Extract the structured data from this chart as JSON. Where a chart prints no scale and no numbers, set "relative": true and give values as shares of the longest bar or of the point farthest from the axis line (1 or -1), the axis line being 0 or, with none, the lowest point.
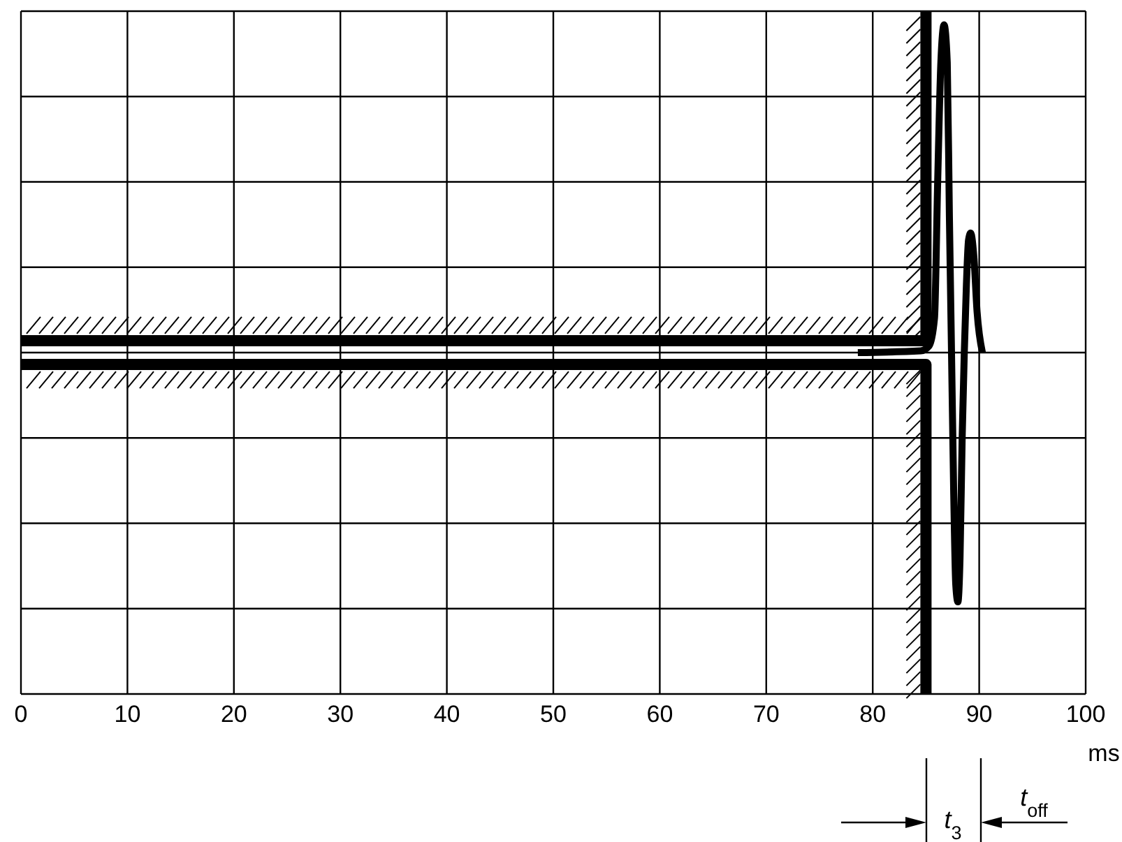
{
  "chart_data": {
    "type": "line",
    "relative": true,
    "xlabel": "ms",
    "xlim": [
      0,
      100
    ],
    "xticks": [
      0,
      10,
      20,
      30,
      40,
      50,
      60,
      70,
      80,
      90,
      100
    ],
    "grid": true,
    "legend": false,
    "marker": "none",
    "line_style": "solid",
    "series": [
      {
        "color": "#000000",
        "x": [
          78.6,
          84.5,
          85.3,
          85.8,
          86.1,
          86.4,
          86.7,
          87.0,
          87.2,
          87.4,
          87.6,
          87.8,
          88.0,
          88.2,
          88.4,
          88.6,
          88.8,
          89.0,
          89.2,
          89.5,
          89.8,
          90.3
        ],
        "values": [
          0,
          0.005,
          0.02,
          0.1,
          0.5,
          0.85,
          0.96,
          0.85,
          0.4,
          0,
          -0.4,
          -0.68,
          -0.73,
          -0.6,
          -0.25,
          0,
          0.2,
          0.33,
          0.35,
          0.28,
          0.12,
          0
        ]
      },
      {
        "color": "#000000",
        "x": [
          0,
          85,
          85
        ],
        "values": [
          0.035,
          0.035,
          1
        ]
      },
      {
        "color": "#000000",
        "x": [
          0,
          85,
          85
        ],
        "values": [
          -0.035,
          -0.035,
          -1
        ]
      }
    ],
    "annotations": [
      "t$_{3}$",
      "t$_{off}$"
    ]
  }
}
